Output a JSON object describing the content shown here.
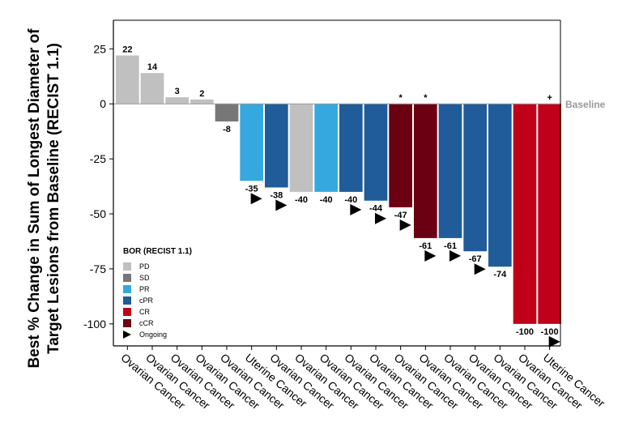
{
  "chart_data": {
    "type": "bar",
    "ylabel_lines": [
      "Best % Change in Sum of Longest Diameter of",
      "Target Lesions from Baseline (RECIST 1.1)"
    ],
    "ylim": [
      -110,
      38
    ],
    "yticks": [
      "25",
      "0",
      "-25",
      "-50",
      "-75",
      "-100"
    ],
    "baseline_label": "Baseline",
    "categories": [
      "Ovarian Cancer",
      "Ovarian Cancer",
      "Ovarian Cancer",
      "Ovarian Cancer",
      "Ovarian Cancer",
      "Uterine Cancer",
      "Ovarian Cancer",
      "Ovarian Cancer",
      "Ovarian Cancer",
      "Ovarian Cancer",
      "Ovarian Cancer",
      "Ovarian Cancer",
      "Ovarian Cancer",
      "Ovarian Cancer",
      "Ovarian Cancer",
      "Ovarian Cancer",
      "Ovarian Cancer",
      "Uterine Cancer"
    ],
    "values": [
      22,
      14,
      3,
      2,
      -8,
      -35,
      -38,
      -40,
      -40,
      -40,
      -44,
      -47,
      -61,
      -61,
      -67,
      -74,
      -100,
      -100
    ],
    "value_labels": [
      "22",
      "14",
      "3",
      "2",
      "-8",
      "-35",
      "-38",
      "-40",
      "-40",
      "-40",
      "-44",
      "-47",
      "-61",
      "-61",
      "-67",
      "-74",
      "-100",
      "-100"
    ],
    "bor": [
      "PD",
      "PD",
      "PD",
      "PD",
      "SD",
      "PR",
      "cPR",
      "PD",
      "PR",
      "cPR",
      "cPR",
      "cCR",
      "cCR",
      "cPR",
      "cPR",
      "cPR",
      "CR",
      "CR"
    ],
    "ongoing": [
      false,
      false,
      false,
      false,
      false,
      true,
      true,
      false,
      false,
      true,
      true,
      true,
      true,
      true,
      true,
      false,
      false,
      true
    ],
    "bar_markers": [
      "",
      "",
      "",
      "",
      "",
      "",
      "",
      "",
      "",
      "",
      "",
      "*",
      "*",
      "",
      "",
      "",
      "",
      "+"
    ],
    "legend": {
      "title": "BOR (RECIST 1.1)",
      "items": [
        {
          "key": "PD",
          "label": "PD",
          "color": "#c0c0c0"
        },
        {
          "key": "SD",
          "label": "SD",
          "color": "#777777"
        },
        {
          "key": "PR",
          "label": "PR",
          "color": "#35a8e0"
        },
        {
          "key": "cPR",
          "label": "cPR",
          "color": "#1f5c99"
        },
        {
          "key": "CR",
          "label": "CR",
          "color": "#c0001a"
        },
        {
          "key": "cCR",
          "label": "cCR",
          "color": "#6b0012"
        }
      ],
      "ongoing_label": "Ongoing",
      "placement": "bottom-left"
    },
    "grid": false,
    "baseline_color": "#999999"
  }
}
